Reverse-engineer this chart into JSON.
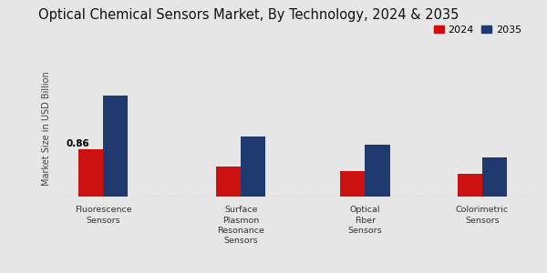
{
  "title": "Optical Chemical Sensors Market, By Technology, 2024 & 2035",
  "categories": [
    "Fluorescence\nSensors",
    "Surface\nPlasmon\nResonance\nSensors",
    "Optical\nFiber\nSensors",
    "Colorimetric\nSensors"
  ],
  "values_2024": [
    0.86,
    0.55,
    0.47,
    0.42
  ],
  "values_2035": [
    1.85,
    1.1,
    0.95,
    0.72
  ],
  "color_2024": "#cc1111",
  "color_2035": "#1e3a6e",
  "ylabel": "Market Size in USD Billion",
  "annotation_label": "0.86",
  "background_color": "#e6e6e6",
  "legend_labels": [
    "2024",
    "2035"
  ],
  "bar_width": 0.18,
  "title_fontsize": 10.5,
  "axis_label_fontsize": 7,
  "tick_fontsize": 6.8,
  "legend_fontsize": 8,
  "annotation_fontsize": 7.5
}
